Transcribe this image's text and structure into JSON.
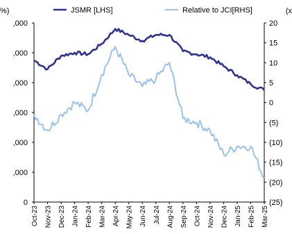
{
  "chart_data": {
    "type": "line",
    "left_axis_header": "%)",
    "right_axis_header": "(x",
    "categories": [
      "Oct-23",
      "Nov-23",
      "Dec-23",
      "Jan-24",
      "Feb-24",
      "Mar-24",
      "Apr-24",
      "May-24",
      "Jun-24",
      "Jul-24",
      "Aug-24",
      "Sep-24",
      "Oct-24",
      "Nov-24",
      "Dec-24",
      "Jan-25",
      "Feb-25",
      "Mar-25"
    ],
    "left_ticks": [
      ",000",
      ",000",
      ",000",
      ",000",
      ",000",
      ",000",
      "0"
    ],
    "left_ylim": [
      0,
      6
    ],
    "right_ticks": [
      "20",
      "15",
      "10",
      "5",
      "0",
      "(5)",
      "(10)",
      "(15)",
      "(20)",
      "(25)"
    ],
    "right_ylim": [
      -25,
      20
    ],
    "grid": false,
    "legend_position": "top",
    "series": [
      {
        "name": "JSMR [LHS]",
        "axis": "left",
        "color": "#2e3192",
        "values": [
          4.75,
          4.45,
          4.9,
          5.0,
          4.95,
          5.3,
          5.8,
          5.6,
          5.4,
          5.6,
          5.6,
          5.05,
          4.95,
          4.85,
          4.55,
          4.25,
          3.95,
          3.75
        ]
      },
      {
        "name": "Relative to JCI[RHS]",
        "axis": "right",
        "color": "#99c2ec",
        "values": [
          -3.0,
          -7.0,
          -3.0,
          0.0,
          -2.0,
          7.0,
          14.0,
          7.0,
          4.0,
          6.0,
          10.0,
          -4.0,
          -5.0,
          -7.0,
          -13.0,
          -11.0,
          -11.0,
          -19.0
        ]
      }
    ]
  }
}
